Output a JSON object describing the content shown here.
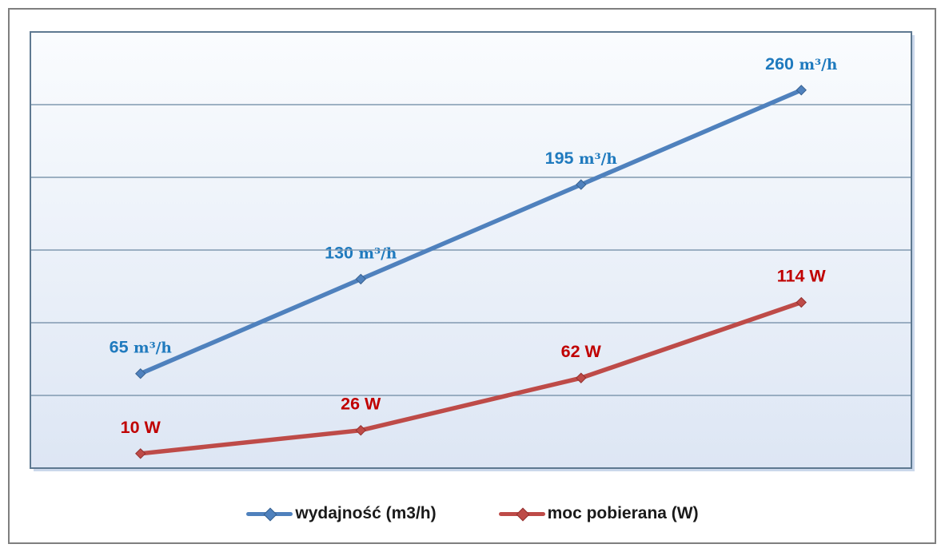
{
  "chart_data": {
    "type": "line",
    "x_tick_labels": [],
    "series": [
      {
        "name": "wydajność (m3/h)",
        "values": [
          65,
          130,
          195,
          260
        ],
        "point_labels": [
          "65 m³/h",
          "130 m³/h",
          "195 m³/h",
          "260 m³/h"
        ],
        "color": "#4F81BD",
        "marker_stroke": "#38618F",
        "label_color": "#1F7ABE",
        "marker": "diamond",
        "unit_font": "serif"
      },
      {
        "name": "moc pobierana (W)",
        "values": [
          10,
          26,
          62,
          114
        ],
        "point_labels": [
          "10 W",
          "26 W",
          "62 W",
          "114 W"
        ],
        "color": "#BE4B48",
        "marker_stroke": "#93302E",
        "label_color": "#C00000",
        "marker": "diamond",
        "unit_font": "sans"
      }
    ],
    "title": "",
    "xlabel": "",
    "ylabel": "",
    "ylim": [
      0,
      300
    ],
    "gridline_step": 50,
    "grid": "horizontal",
    "legend_position": "bottom",
    "axis_tick_labels_visible": false
  },
  "plot_style": {
    "bg_top": "#FAFCFE",
    "bg_bottom": "#DDE6F4",
    "border_color": "#5E7991",
    "grid_color": "#8099B0",
    "shadow_color": "#CBD8EB",
    "frame_border": "#7F7F7F"
  },
  "legend": {
    "items": [
      {
        "label": "wydajność (m3/h)"
      },
      {
        "label": "moc pobierana (W)"
      }
    ]
  }
}
